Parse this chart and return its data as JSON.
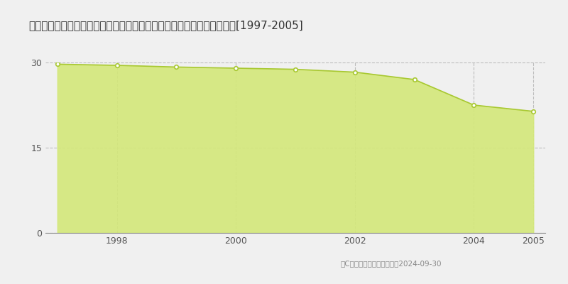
{
  "title": "広島県広島市安佐北区上深川町字高堰４６４番２　基準地価　地価推移[1997-2005]",
  "years": [
    1997,
    1998,
    1999,
    2000,
    2001,
    2002,
    2003,
    2004,
    2005
  ],
  "values": [
    29.7,
    29.5,
    29.2,
    29.0,
    28.8,
    28.3,
    27.0,
    22.5,
    21.4
  ],
  "ylim": [
    0,
    30
  ],
  "yticks": [
    0,
    15,
    30
  ],
  "xticks": [
    1998,
    2000,
    2002,
    2004,
    2005
  ],
  "line_color": "#a8c832",
  "fill_color": "#d4e87a",
  "fill_alpha": 0.9,
  "marker_color": "white",
  "marker_edge_color": "#a8c832",
  "background_color": "#f0f0f0",
  "plot_bg_color": "#f0f0f0",
  "grid_color": "#bbbbbb",
  "copyright_text": "（C）土地価格ドットコム　2024-09-30"
}
